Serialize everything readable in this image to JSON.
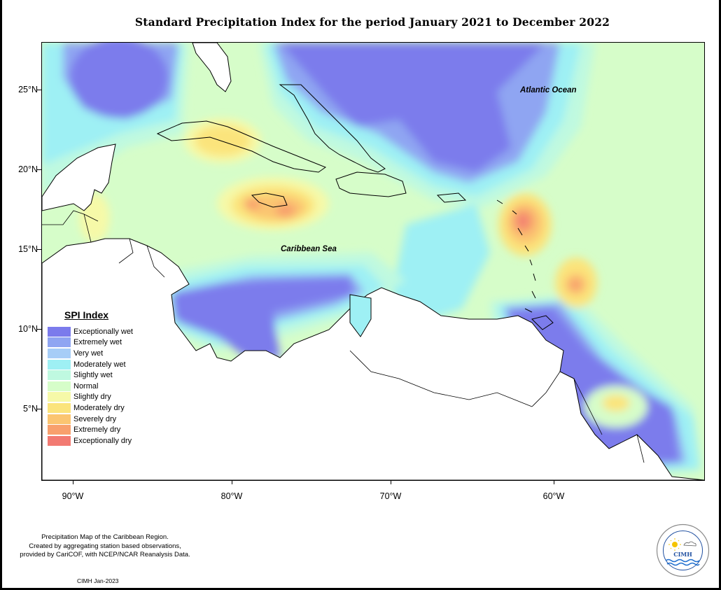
{
  "title": "Standard Precipitation Index for the period January 2021 to December 2022",
  "lat_labels": [
    "25°N",
    "20°N",
    "15°N",
    "10°N",
    "5°N"
  ],
  "lon_labels": [
    "90°W",
    "80°W",
    "70°W",
    "60°W"
  ],
  "ocean_labels": {
    "atlantic": "Atlantic Ocean",
    "caribbean": "Caribbean Sea"
  },
  "legend": {
    "title": "SPI Index",
    "items": [
      {
        "label": "Exceptionally wet",
        "color": "#7b7bec"
      },
      {
        "label": "Extremely wet",
        "color": "#8fa5f2"
      },
      {
        "label": "Very wet",
        "color": "#a6cdf7"
      },
      {
        "label": "Moderately wet",
        "color": "#9ef0f4"
      },
      {
        "label": "Slightly wet",
        "color": "#bff9e0"
      },
      {
        "label": "Normal",
        "color": "#d6fdc9"
      },
      {
        "label": "Slightly dry",
        "color": "#f6f9a8"
      },
      {
        "label": "Moderately dry",
        "color": "#fbe47c"
      },
      {
        "label": "Severely dry",
        "color": "#fbc571"
      },
      {
        "label": "Extremely dry",
        "color": "#f8a06d"
      },
      {
        "label": "Exceptionally dry",
        "color": "#f27a72"
      }
    ]
  },
  "note": {
    "line1": "Precipitation Map of the Caribbean Region.",
    "line2": "Created by aggregating station based observations,",
    "line3": "provided by CariCOF, with NCEP/NCAR Reanalysis Data."
  },
  "date_note": "CIMH Jan-2023",
  "logo": {
    "text": "CIMH",
    "ring_text": "Caribbean Institute for Meteorology and Hydrology"
  }
}
